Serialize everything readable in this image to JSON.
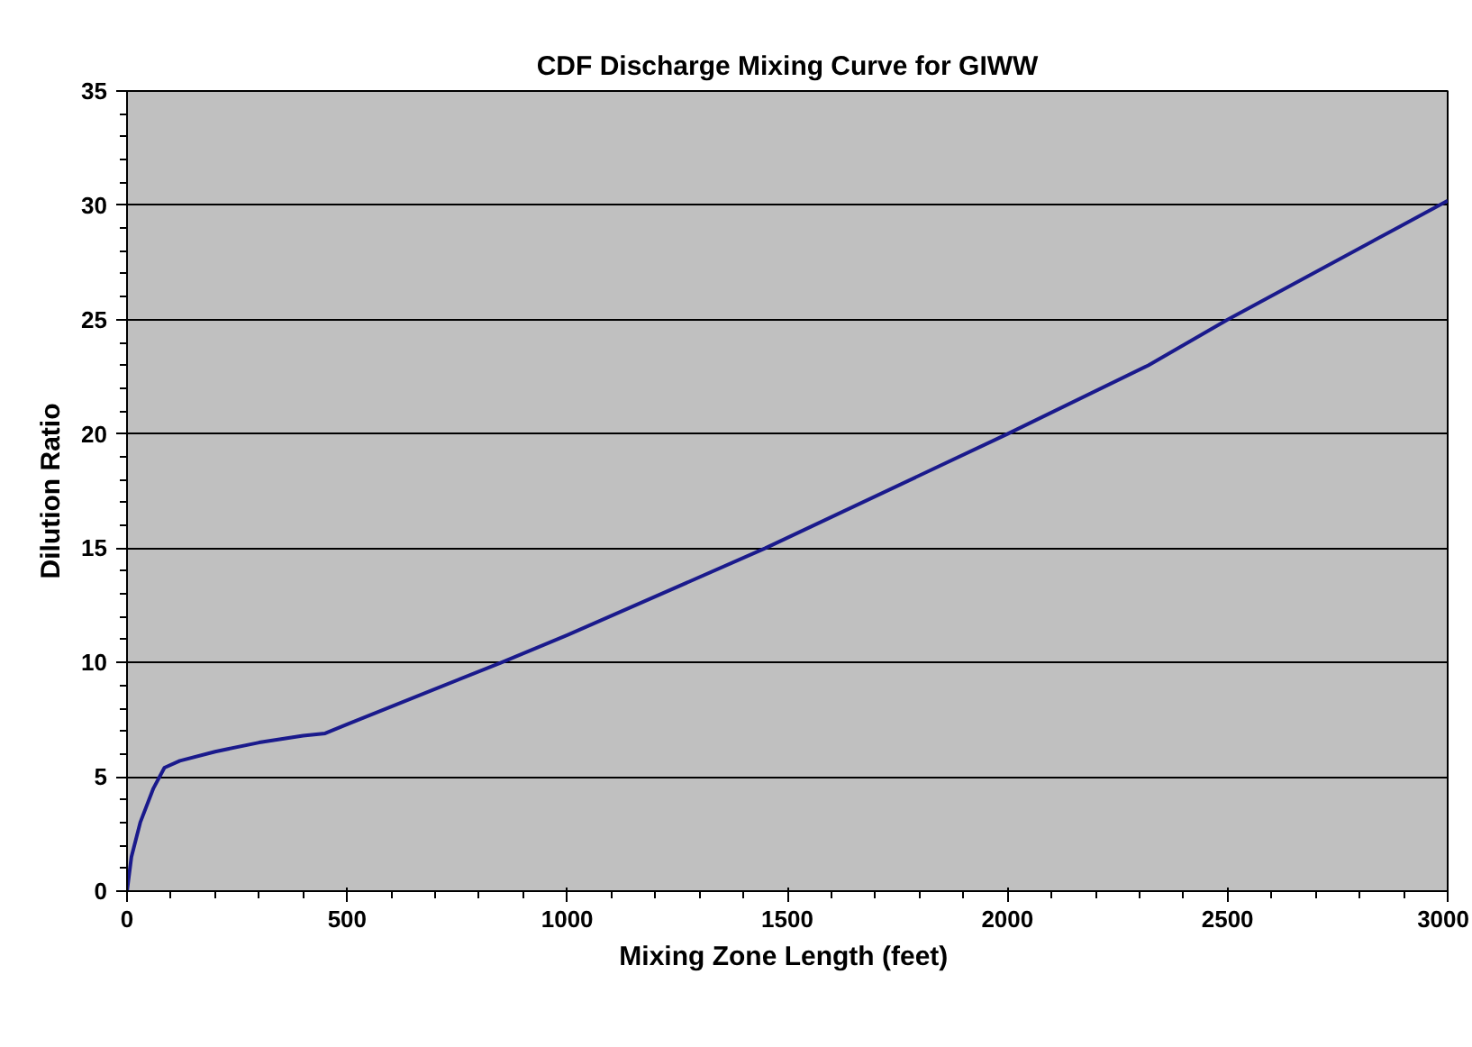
{
  "chart_data": {
    "type": "line",
    "title": "CDF Discharge Mixing Curve for GIWW",
    "xlabel": "Mixing Zone Length  (feet)",
    "ylabel": "Dilution Ratio",
    "x": [
      0,
      10,
      30,
      60,
      85,
      120,
      200,
      300,
      400,
      450,
      500,
      850,
      1000,
      1450,
      2000,
      2320,
      2500,
      3000
    ],
    "series": [
      {
        "color": "#1a1a8c",
        "values": [
          0,
          1.5,
          3,
          4.5,
          5.4,
          5.7,
          6.1,
          6.5,
          6.8,
          6.9,
          7.3,
          10,
          11.2,
          15,
          20,
          23,
          25,
          30.2
        ]
      }
    ],
    "xlim": [
      0,
      3000
    ],
    "ylim": [
      0,
      35
    ],
    "xticks": [
      0,
      500,
      1000,
      1500,
      2000,
      2500,
      3000
    ],
    "yticks": [
      0,
      5,
      10,
      15,
      20,
      25,
      30,
      35
    ],
    "grid": "y",
    "marker": "none",
    "line_style": "solid"
  }
}
